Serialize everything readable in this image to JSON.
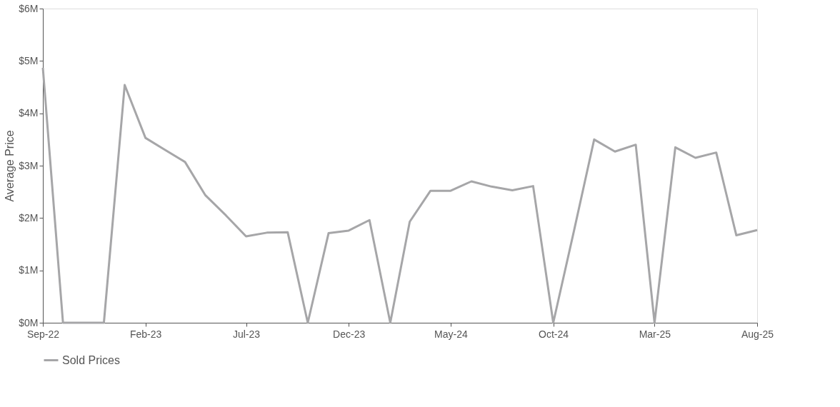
{
  "chart_data": {
    "type": "line",
    "ylabel": "Average Price",
    "legend": "bottom",
    "grid": false,
    "marker": "none",
    "line_style": "solid",
    "x": [
      "2022-09",
      "2022-10",
      "2022-11",
      "2022-12",
      "2023-01",
      "2023-02",
      "2023-03",
      "2023-04",
      "2023-05",
      "2023-06",
      "2023-07",
      "2023-08",
      "2023-09",
      "2023-10",
      "2023-11",
      "2023-12",
      "2024-01",
      "2024-02",
      "2024-03",
      "2024-04",
      "2024-05",
      "2024-06",
      "2024-07",
      "2024-08",
      "2024-09",
      "2024-10",
      "2024-11",
      "2024-12",
      "2025-01",
      "2025-02",
      "2025-03",
      "2025-04",
      "2025-05",
      "2025-06",
      "2025-07",
      "2025-08"
    ],
    "series": [
      {
        "name": "Sold Prices",
        "color": "#a6a6a8",
        "values": [
          4.87,
          0,
          0,
          0,
          4.54,
          3.53,
          3.31,
          3.07,
          2.44,
          2.05,
          1.65,
          1.72,
          1.73,
          0,
          1.71,
          1.76,
          1.96,
          0,
          1.93,
          2.52,
          2.52,
          2.7,
          2.6,
          2.53,
          2.61,
          0,
          1.76,
          3.5,
          3.27,
          3.4,
          0,
          3.35,
          3.15,
          3.25,
          1.67,
          1.77
        ]
      }
    ],
    "xlim": [
      "2022-09",
      "2025-08"
    ],
    "xticks": [
      {
        "value": "2022-09",
        "label": "Sep-22"
      },
      {
        "value": "2023-02",
        "label": "Feb-23"
      },
      {
        "value": "2023-07",
        "label": "Jul-23"
      },
      {
        "value": "2023-12",
        "label": "Dec-23"
      },
      {
        "value": "2024-05",
        "label": "May-24"
      },
      {
        "value": "2024-10",
        "label": "Oct-24"
      },
      {
        "value": "2025-03",
        "label": "Mar-25"
      },
      {
        "value": "2025-08",
        "label": "Aug-25"
      }
    ],
    "ylim": [
      0,
      6
    ],
    "yticks": [
      {
        "value": 0,
        "label": "$0M"
      },
      {
        "value": 1,
        "label": "$1M"
      },
      {
        "value": 2,
        "label": "$2M"
      },
      {
        "value": 3,
        "label": "$3M"
      },
      {
        "value": 4,
        "label": "$4M"
      },
      {
        "value": 5,
        "label": "$5M"
      },
      {
        "value": 6,
        "label": "$6M"
      }
    ]
  }
}
